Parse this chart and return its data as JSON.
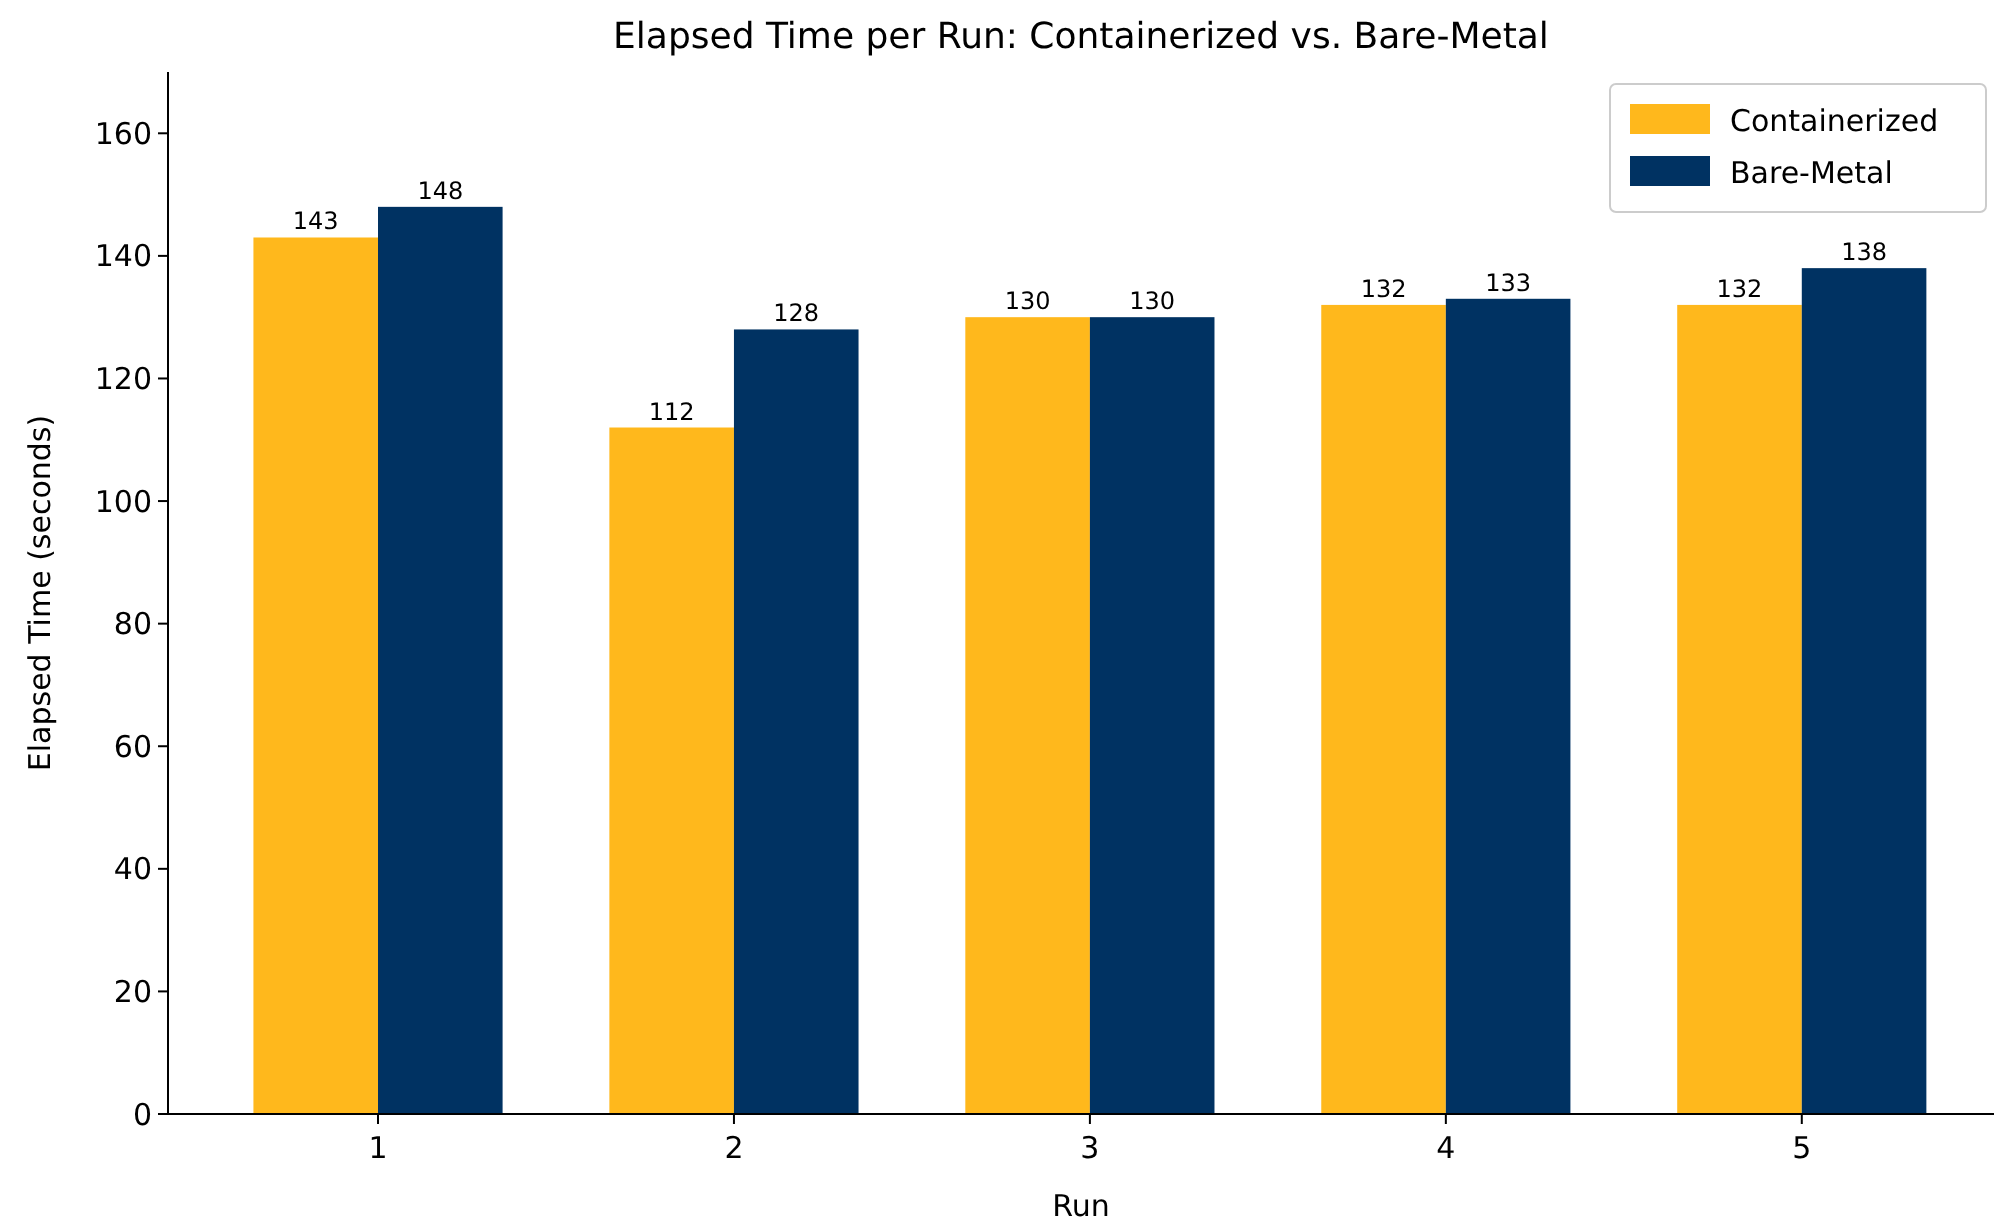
{
  "chart_data": {
    "type": "bar",
    "title": "Elapsed Time per Run: Containerized vs. Bare-Metal",
    "xlabel": "Run",
    "ylabel": "Elapsed Time (seconds)",
    "categories": [
      "1",
      "2",
      "3",
      "4",
      "5"
    ],
    "series": [
      {
        "name": "Containerized",
        "color": "#ffb81c",
        "values": [
          143,
          112,
          130,
          132,
          132
        ]
      },
      {
        "name": "Bare-Metal",
        "color": "#003262",
        "values": [
          148,
          128,
          130,
          133,
          138
        ]
      }
    ],
    "ylim": [
      0,
      170
    ],
    "yticks": [
      0,
      20,
      40,
      60,
      80,
      100,
      120,
      140,
      160
    ],
    "data_labels": true,
    "legend": "top right",
    "grid": false
  }
}
